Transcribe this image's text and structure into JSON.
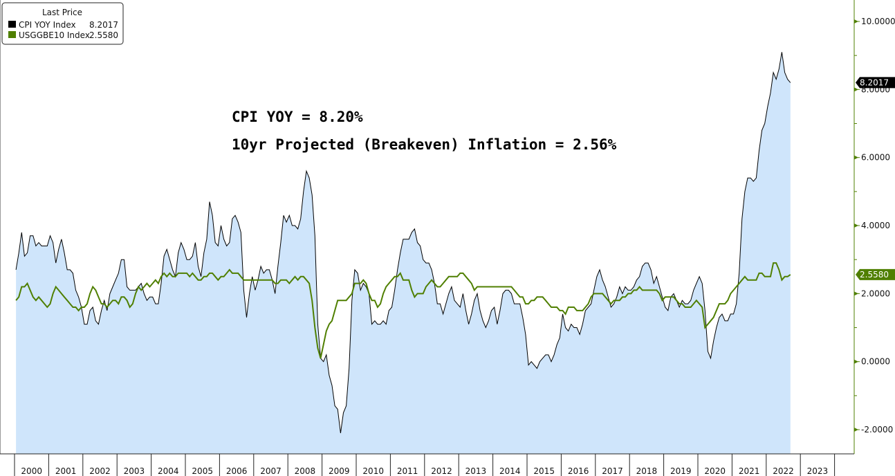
{
  "chart_data": {
    "type": "area",
    "legend": {
      "title": "Last Price",
      "placement": "top-left",
      "entries": [
        {
          "name": "CPI YOY Index",
          "value": "8.2017",
          "color": "#000000"
        },
        {
          "name": "USGGBE10 Index",
          "value": "2.5580",
          "color": "#4f7f00"
        }
      ]
    },
    "annotations": [
      "CPI YOY = 8.20%",
      "10yr Projected (Breakeven) Inflation = 2.56%"
    ],
    "last_value_labels": [
      "8.2017",
      "2.5580"
    ],
    "y_axis": {
      "position": "right",
      "ylim": [
        -2.7,
        10.6
      ],
      "ticks": [
        "10.0000",
        "8.0000",
        "6.0000",
        "4.0000",
        "2.0000",
        "0.0000",
        "-2.0000"
      ]
    },
    "x_axis": {
      "ticks": [
        "2000",
        "2001",
        "2002",
        "2003",
        "2004",
        "2005",
        "2006",
        "2007",
        "2008",
        "2009",
        "2010",
        "2011",
        "2012",
        "2013",
        "2014",
        "2015",
        "2016",
        "2017",
        "2018",
        "2019",
        "2020",
        "2021",
        "2022",
        "2023"
      ]
    },
    "grid": false,
    "x_start": "2000-01",
    "frequency": "monthly",
    "fill_color": "#cfe5fb",
    "series": [
      {
        "name": "CPI YOY Index",
        "style": "area",
        "color": "#000000",
        "values": [
          2.7,
          3.2,
          3.8,
          3.1,
          3.2,
          3.7,
          3.7,
          3.4,
          3.5,
          3.4,
          3.4,
          3.4,
          3.7,
          3.5,
          2.9,
          3.3,
          3.6,
          3.2,
          2.7,
          2.7,
          2.6,
          2.1,
          1.9,
          1.6,
          1.1,
          1.1,
          1.5,
          1.6,
          1.2,
          1.1,
          1.5,
          1.8,
          1.5,
          2.0,
          2.2,
          2.4,
          2.6,
          3.0,
          3.0,
          2.2,
          2.1,
          2.1,
          2.1,
          2.2,
          2.3,
          2.0,
          1.8,
          1.9,
          1.9,
          1.7,
          1.7,
          2.3,
          3.1,
          3.3,
          3.0,
          2.7,
          2.5,
          3.2,
          3.5,
          3.3,
          3.0,
          3.0,
          3.1,
          3.5,
          2.8,
          2.5,
          3.2,
          3.6,
          4.7,
          4.3,
          3.5,
          3.4,
          4.0,
          3.6,
          3.4,
          3.5,
          4.2,
          4.3,
          4.1,
          3.8,
          2.1,
          1.3,
          2.0,
          2.5,
          2.1,
          2.4,
          2.8,
          2.6,
          2.7,
          2.7,
          2.4,
          2.0,
          2.8,
          3.5,
          4.3,
          4.1,
          4.3,
          4.0,
          4.0,
          3.9,
          4.2,
          5.0,
          5.6,
          5.4,
          4.9,
          3.7,
          1.1,
          0.1,
          0.0,
          0.2,
          -0.4,
          -0.7,
          -1.3,
          -1.4,
          -2.1,
          -1.5,
          -1.3,
          -0.2,
          1.8,
          2.7,
          2.6,
          2.1,
          2.3,
          2.2,
          2.0,
          1.1,
          1.2,
          1.1,
          1.1,
          1.2,
          1.1,
          1.5,
          1.6,
          2.1,
          2.7,
          3.2,
          3.6,
          3.6,
          3.6,
          3.8,
          3.9,
          3.5,
          3.4,
          3.0,
          2.9,
          2.9,
          2.7,
          2.3,
          1.7,
          1.7,
          1.4,
          1.7,
          2.0,
          2.2,
          1.8,
          1.7,
          1.6,
          2.0,
          1.5,
          1.1,
          1.4,
          1.8,
          2.0,
          1.5,
          1.2,
          1.0,
          1.2,
          1.5,
          1.6,
          1.1,
          1.5,
          2.0,
          2.1,
          2.1,
          2.0,
          1.7,
          1.7,
          1.7,
          1.3,
          0.8,
          -0.1,
          0.0,
          -0.1,
          -0.2,
          0.0,
          0.1,
          0.2,
          0.2,
          0.0,
          0.2,
          0.5,
          0.7,
          1.4,
          1.0,
          0.9,
          1.1,
          1.0,
          1.0,
          0.8,
          1.1,
          1.5,
          1.6,
          1.7,
          2.1,
          2.5,
          2.7,
          2.4,
          2.2,
          1.9,
          1.6,
          1.7,
          1.9,
          2.2,
          2.0,
          2.2,
          2.1,
          2.1,
          2.2,
          2.4,
          2.5,
          2.8,
          2.9,
          2.9,
          2.7,
          2.3,
          2.5,
          2.2,
          1.9,
          1.6,
          1.5,
          1.9,
          2.0,
          1.8,
          1.6,
          1.8,
          1.7,
          1.7,
          1.8,
          2.1,
          2.3,
          2.5,
          2.3,
          1.5,
          0.3,
          0.1,
          0.6,
          1.0,
          1.3,
          1.4,
          1.2,
          1.2,
          1.4,
          1.4,
          1.7,
          2.6,
          4.2,
          5.0,
          5.4,
          5.4,
          5.3,
          5.4,
          6.2,
          6.8,
          7.0,
          7.5,
          7.9,
          8.5,
          8.3,
          8.6,
          9.1,
          8.5,
          8.3,
          8.2017
        ]
      },
      {
        "name": "USGGBE10 Index",
        "style": "line",
        "color": "#4f7f00",
        "values": [
          1.8,
          1.9,
          2.2,
          2.2,
          2.3,
          2.1,
          1.9,
          1.8,
          1.9,
          1.8,
          1.7,
          1.6,
          1.7,
          2.0,
          2.2,
          2.1,
          2.0,
          1.9,
          1.8,
          1.7,
          1.6,
          1.6,
          1.5,
          1.6,
          1.6,
          1.7,
          2.0,
          2.2,
          2.1,
          1.9,
          1.7,
          1.7,
          1.6,
          1.7,
          1.8,
          1.8,
          1.7,
          1.9,
          1.9,
          1.8,
          1.6,
          1.7,
          2.0,
          2.2,
          2.1,
          2.2,
          2.3,
          2.2,
          2.3,
          2.4,
          2.3,
          2.5,
          2.6,
          2.5,
          2.6,
          2.5,
          2.5,
          2.6,
          2.6,
          2.6,
          2.6,
          2.5,
          2.6,
          2.5,
          2.4,
          2.4,
          2.5,
          2.5,
          2.6,
          2.6,
          2.5,
          2.4,
          2.5,
          2.5,
          2.6,
          2.7,
          2.6,
          2.6,
          2.6,
          2.5,
          2.4,
          2.4,
          2.4,
          2.4,
          2.4,
          2.4,
          2.4,
          2.4,
          2.4,
          2.4,
          2.4,
          2.3,
          2.3,
          2.4,
          2.4,
          2.4,
          2.3,
          2.4,
          2.5,
          2.4,
          2.5,
          2.5,
          2.4,
          2.3,
          1.8,
          1.0,
          0.4,
          0.1,
          0.5,
          0.9,
          1.1,
          1.2,
          1.5,
          1.8,
          1.8,
          1.8,
          1.8,
          1.9,
          2.0,
          2.3,
          2.3,
          2.3,
          2.4,
          2.3,
          2.0,
          1.8,
          1.8,
          1.6,
          1.7,
          2.0,
          2.2,
          2.3,
          2.4,
          2.5,
          2.5,
          2.6,
          2.4,
          2.4,
          2.4,
          2.1,
          1.9,
          2.0,
          2.0,
          2.0,
          2.2,
          2.3,
          2.4,
          2.3,
          2.2,
          2.2,
          2.3,
          2.4,
          2.5,
          2.5,
          2.5,
          2.5,
          2.6,
          2.6,
          2.5,
          2.4,
          2.3,
          2.1,
          2.2,
          2.2,
          2.2,
          2.2,
          2.2,
          2.2,
          2.2,
          2.2,
          2.2,
          2.2,
          2.2,
          2.2,
          2.2,
          2.1,
          2.0,
          1.9,
          1.9,
          1.7,
          1.7,
          1.8,
          1.8,
          1.9,
          1.9,
          1.9,
          1.8,
          1.7,
          1.6,
          1.6,
          1.6,
          1.5,
          1.5,
          1.4,
          1.6,
          1.6,
          1.6,
          1.5,
          1.5,
          1.5,
          1.6,
          1.7,
          1.9,
          2.0,
          2.0,
          2.0,
          2.0,
          1.9,
          1.8,
          1.7,
          1.8,
          1.8,
          1.8,
          1.9,
          1.9,
          2.0,
          2.0,
          2.1,
          2.1,
          2.2,
          2.1,
          2.1,
          2.1,
          2.1,
          2.1,
          2.1,
          2.0,
          1.8,
          1.9,
          1.9,
          1.9,
          1.9,
          1.8,
          1.7,
          1.7,
          1.6,
          1.6,
          1.6,
          1.7,
          1.8,
          1.7,
          1.6,
          1.0,
          1.1,
          1.2,
          1.3,
          1.5,
          1.7,
          1.7,
          1.7,
          1.8,
          2.0,
          2.1,
          2.2,
          2.3,
          2.4,
          2.5,
          2.4,
          2.4,
          2.4,
          2.4,
          2.6,
          2.6,
          2.5,
          2.5,
          2.5,
          2.9,
          2.9,
          2.7,
          2.4,
          2.5,
          2.5,
          2.558
        ]
      }
    ]
  }
}
